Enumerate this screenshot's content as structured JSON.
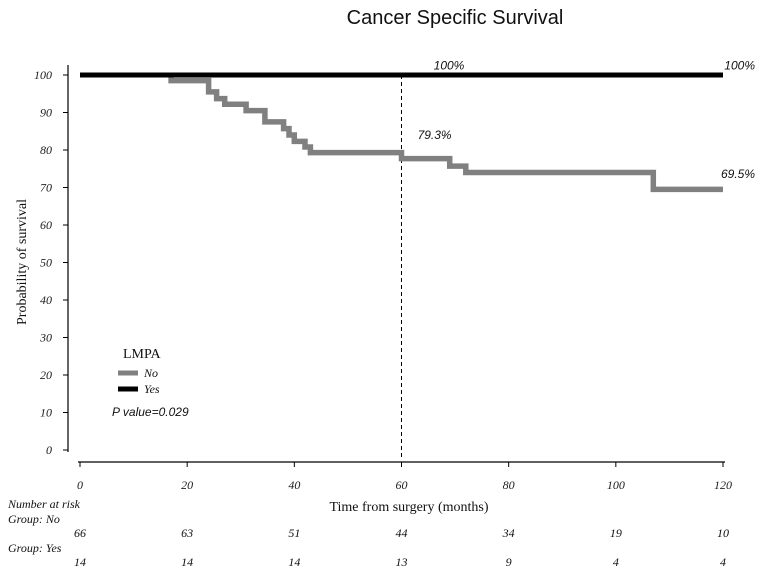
{
  "chart_data": {
    "type": "line",
    "title": "Cancer Specific Survival",
    "xlabel": "Time from surgery (months)",
    "ylabel": "Probability of survival",
    "xlim": [
      0,
      120
    ],
    "ylim": [
      0,
      100
    ],
    "x_ticks": [
      "0",
      "20",
      "40",
      "60",
      "80",
      "100",
      "120"
    ],
    "y_ticks": [
      "0",
      "10",
      "20",
      "30",
      "40",
      "50",
      "60",
      "70",
      "80",
      "90",
      "100"
    ],
    "reference_line_x": 60,
    "legend": {
      "title": "LMPA",
      "entries": [
        {
          "name": "No",
          "color": "#808080"
        },
        {
          "name": "Yes",
          "color": "#000000"
        }
      ]
    },
    "series": [
      {
        "name": "Yes",
        "color": "#000000",
        "steps": [
          [
            0,
            100
          ],
          [
            120,
            100
          ]
        ]
      },
      {
        "name": "No",
        "color": "#808080",
        "steps": [
          [
            17,
            100
          ],
          [
            17,
            98.5
          ],
          [
            24,
            98.5
          ],
          [
            24,
            95.5
          ],
          [
            25.5,
            95.5
          ],
          [
            25.5,
            93.7
          ],
          [
            27,
            93.7
          ],
          [
            27,
            92.2
          ],
          [
            31,
            92.2
          ],
          [
            31,
            90.5
          ],
          [
            34.5,
            90.5
          ],
          [
            34.5,
            87.5
          ],
          [
            38,
            87.5
          ],
          [
            38,
            85.7
          ],
          [
            39,
            85.7
          ],
          [
            39,
            84
          ],
          [
            40,
            84
          ],
          [
            40,
            82.3
          ],
          [
            42,
            82.3
          ],
          [
            42,
            80.8
          ],
          [
            43,
            80.8
          ],
          [
            43,
            79.3
          ],
          [
            60,
            79.3
          ],
          [
            60,
            77.7
          ],
          [
            69,
            77.7
          ],
          [
            69,
            75.7
          ],
          [
            72,
            75.7
          ],
          [
            72,
            74
          ],
          [
            107,
            74
          ],
          [
            107,
            69.5
          ],
          [
            120,
            69.5
          ]
        ]
      }
    ],
    "annotations": [
      {
        "text": "100%",
        "x": 66,
        "y": 101.5
      },
      {
        "text": "100%",
        "x": 121,
        "y": 101.5
      },
      {
        "text": "79.3%",
        "x": 63,
        "y": 83
      },
      {
        "text": "69.5%",
        "x": 121,
        "y": 72.5
      }
    ],
    "p_value": "P value=0.029",
    "risk_table": {
      "header": "Number at risk",
      "groups": [
        {
          "label": "Group: No",
          "counts": [
            "66",
            "63",
            "51",
            "44",
            "34",
            "19",
            "10"
          ]
        },
        {
          "label": "Group: Yes",
          "counts": [
            "14",
            "14",
            "14",
            "13",
            "9",
            "4",
            "4"
          ]
        }
      ]
    }
  }
}
